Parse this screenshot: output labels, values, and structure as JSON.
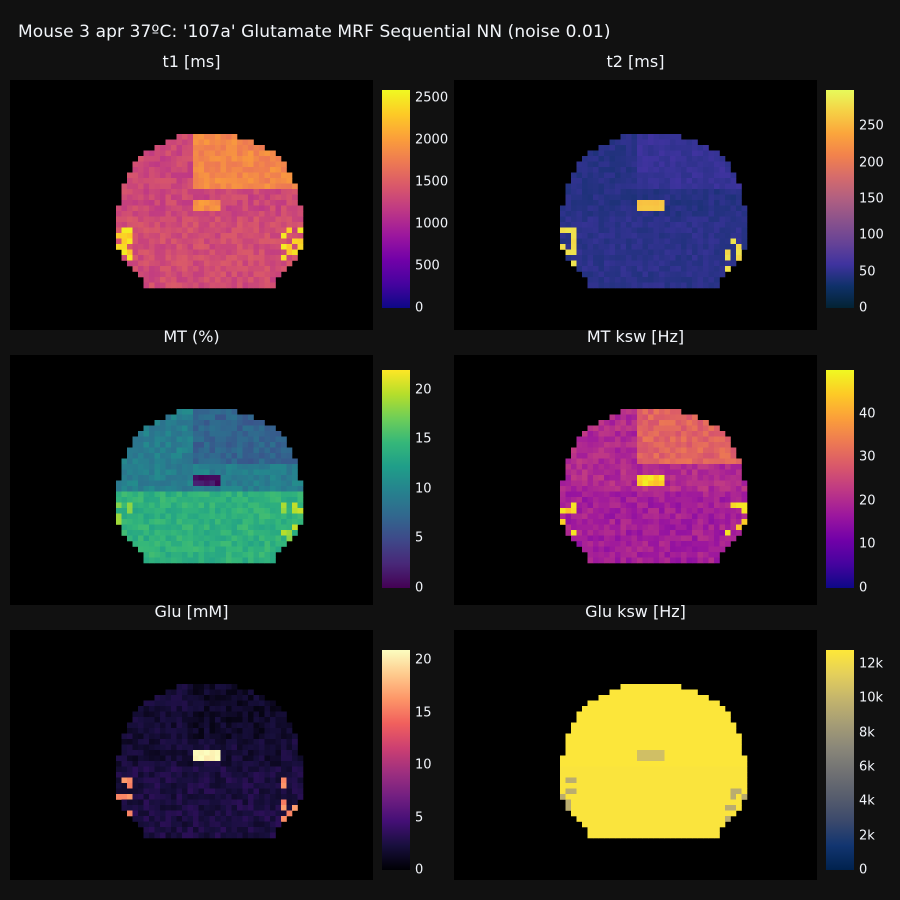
{
  "title": "Mouse 3 apr 37ºC: '107a' Glutamate MRF Sequential NN (noise 0.01)",
  "chart_data": [
    {
      "type": "heatmap",
      "key": "t1",
      "title": "t1 [ms]",
      "colorscale": "plasma",
      "zrange": [
        0,
        2600
      ],
      "colorbar_ticks": [
        {
          "v": 0,
          "label": "0"
        },
        {
          "v": 500,
          "label": "500"
        },
        {
          "v": 1000,
          "label": "1000"
        },
        {
          "v": 1500,
          "label": "1500"
        },
        {
          "v": 2000,
          "label": "2000"
        },
        {
          "v": 2500,
          "label": "2500"
        }
      ],
      "typical_value": 1300,
      "upper_value": 1850,
      "hot_value": 2400,
      "ventricle_value": 1900,
      "lower_value": 1350,
      "noise": 130
    },
    {
      "type": "heatmap",
      "key": "t2",
      "title": "t2 [ms]",
      "colorscale": "thermal",
      "zrange": [
        0,
        300
      ],
      "colorbar_ticks": [
        {
          "v": 0,
          "label": "0"
        },
        {
          "v": 50,
          "label": "50"
        },
        {
          "v": 100,
          "label": "100"
        },
        {
          "v": 150,
          "label": "150"
        },
        {
          "v": 200,
          "label": "200"
        },
        {
          "v": 250,
          "label": "250"
        }
      ],
      "typical_value": 45,
      "upper_value": 55,
      "hot_value": 280,
      "ventricle_value": 260,
      "lower_value": 48,
      "noise": 6
    },
    {
      "type": "heatmap",
      "key": "mt",
      "title": "MT (%)",
      "colorscale": "viridis",
      "zrange": [
        0,
        22
      ],
      "colorbar_ticks": [
        {
          "v": 0,
          "label": "0"
        },
        {
          "v": 5,
          "label": "5"
        },
        {
          "v": 10,
          "label": "10"
        },
        {
          "v": 15,
          "label": "15"
        },
        {
          "v": 20,
          "label": "20"
        }
      ],
      "typical_value": 9.5,
      "upper_value": 7,
      "hot_value": 19,
      "ventricle_value": 1,
      "lower_value": 14,
      "noise": 1.2
    },
    {
      "type": "heatmap",
      "key": "mt_ksw",
      "title": "MT ksw [Hz]",
      "colorscale": "plasma",
      "zrange": [
        0,
        50
      ],
      "colorbar_ticks": [
        {
          "v": 0,
          "label": "0"
        },
        {
          "v": 10,
          "label": "10"
        },
        {
          "v": 20,
          "label": "20"
        },
        {
          "v": 30,
          "label": "30"
        },
        {
          "v": 40,
          "label": "40"
        }
      ],
      "typical_value": 20,
      "upper_value": 30,
      "hot_value": 46,
      "ventricle_value": 46,
      "lower_value": 18,
      "noise": 3
    },
    {
      "type": "heatmap",
      "key": "glu",
      "title": "Glu [mM]",
      "colorscale": "magma",
      "zrange": [
        0,
        21
      ],
      "colorbar_ticks": [
        {
          "v": 0,
          "label": "0"
        },
        {
          "v": 5,
          "label": "5"
        },
        {
          "v": 10,
          "label": "10"
        },
        {
          "v": 15,
          "label": "15"
        },
        {
          "v": 20,
          "label": "20"
        }
      ],
      "typical_value": 2,
      "upper_value": 1.5,
      "hot_value": 16,
      "ventricle_value": 21,
      "lower_value": 2.5,
      "noise": 0.9
    },
    {
      "type": "heatmap",
      "key": "glu_ksw",
      "title": "Glu ksw [Hz]",
      "colorscale": "cividis",
      "zrange": [
        0,
        12800
      ],
      "colorbar_ticks": [
        {
          "v": 0,
          "label": "0"
        },
        {
          "v": 2000,
          "label": "2k"
        },
        {
          "v": 4000,
          "label": "4k"
        },
        {
          "v": 6000,
          "label": "6k"
        },
        {
          "v": 8000,
          "label": "8k"
        },
        {
          "v": 10000,
          "label": "10k"
        },
        {
          "v": 12000,
          "label": "12k"
        }
      ],
      "typical_value": 12700,
      "upper_value": 12700,
      "hot_value": 9500,
      "ventricle_value": 10500,
      "lower_value": 12600,
      "noise": 0
    }
  ]
}
